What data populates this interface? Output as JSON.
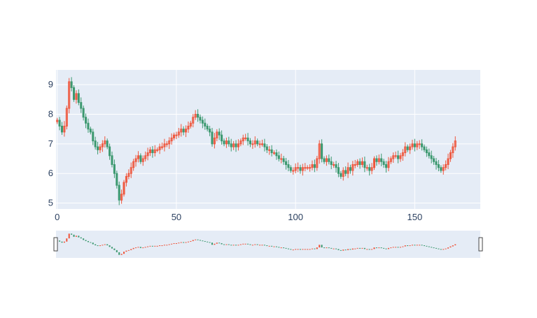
{
  "chart_data": {
    "type": "candlestick",
    "title": "",
    "xlabel": "",
    "ylabel": "",
    "xlim": [
      -0.5,
      177.5
    ],
    "ylim": [
      4.8,
      9.5
    ],
    "x_ticks": [
      0,
      50,
      100,
      150
    ],
    "x_tick_labels": [
      "0",
      "50",
      "100",
      "150"
    ],
    "y_ticks": [
      5,
      6,
      7,
      8,
      9
    ],
    "y_tick_labels": [
      "5",
      "6",
      "7",
      "8",
      "9"
    ],
    "grid": true,
    "rangeslider": true,
    "colors": {
      "increasing": "#ef553b",
      "decreasing": "#3d9970",
      "plot_background": "#e5ecf6",
      "grid": "#ffffff",
      "axis_text": "#2a3f5f"
    },
    "close_approx": [
      7.8,
      7.6,
      7.4,
      7.6,
      8.2,
      9.1,
      8.9,
      8.5,
      8.7,
      8.4,
      8.2,
      7.9,
      7.7,
      7.5,
      7.4,
      7.1,
      6.9,
      6.8,
      6.9,
      7.0,
      7.1,
      6.9,
      6.6,
      6.3,
      6.0,
      5.6,
      5.1,
      5.3,
      5.7,
      5.9,
      6.0,
      6.2,
      6.4,
      6.5,
      6.6,
      6.4,
      6.5,
      6.6,
      6.7,
      6.8,
      6.7,
      6.8,
      6.8,
      6.9,
      6.9,
      7.0,
      7.0,
      7.1,
      7.2,
      7.3,
      7.3,
      7.4,
      7.5,
      7.4,
      7.5,
      7.6,
      7.7,
      7.9,
      8.0,
      7.9,
      7.8,
      7.7,
      7.6,
      7.5,
      7.4,
      7.0,
      7.2,
      7.4,
      7.3,
      7.1,
      7.0,
      7.1,
      7.0,
      6.9,
      7.0,
      6.9,
      7.0,
      7.1,
      7.2,
      7.2,
      7.1,
      7.0,
      7.0,
      7.1,
      7.0,
      7.0,
      7.0,
      6.9,
      6.8,
      6.8,
      6.7,
      6.7,
      6.6,
      6.5,
      6.5,
      6.4,
      6.3,
      6.2,
      6.1,
      6.1,
      6.2,
      6.2,
      6.1,
      6.2,
      6.2,
      6.2,
      6.2,
      6.3,
      6.2,
      6.5,
      7.0,
      6.5,
      6.4,
      6.5,
      6.4,
      6.3,
      6.3,
      6.2,
      6.0,
      5.9,
      6.1,
      6.0,
      6.2,
      6.1,
      6.3,
      6.3,
      6.4,
      6.3,
      6.4,
      6.2,
      6.2,
      6.1,
      6.2,
      6.5,
      6.4,
      6.5,
      6.4,
      6.3,
      6.2,
      6.4,
      6.5,
      6.6,
      6.6,
      6.5,
      6.6,
      6.7,
      6.9,
      6.8,
      6.9,
      7.0,
      6.9,
      7.0,
      7.0,
      6.9,
      6.8,
      6.7,
      6.6,
      6.5,
      6.4,
      6.3,
      6.2,
      6.1,
      6.2,
      6.3,
      6.5,
      6.7,
      6.9,
      7.1
    ]
  }
}
